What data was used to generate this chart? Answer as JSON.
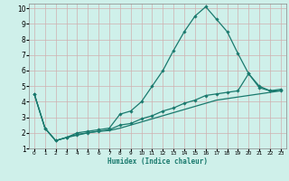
{
  "bg_color": "#cff0ea",
  "grid_color": "#d0b0b0",
  "line_color": "#1a7a6e",
  "xlabel": "Humidex (Indice chaleur)",
  "xlim": [
    -0.5,
    23.5
  ],
  "ylim": [
    1,
    10.3
  ],
  "yticks": [
    1,
    2,
    3,
    4,
    5,
    6,
    7,
    8,
    9,
    10
  ],
  "xticks": [
    0,
    1,
    2,
    3,
    4,
    5,
    6,
    7,
    8,
    9,
    10,
    11,
    12,
    13,
    14,
    15,
    16,
    17,
    18,
    19,
    20,
    21,
    22,
    23
  ],
  "series": [
    {
      "x": [
        0,
        1,
        2,
        3,
        4,
        5,
        6,
        7,
        8,
        9,
        10,
        11,
        12,
        13,
        14,
        15,
        16,
        17,
        18,
        19,
        20,
        21,
        22,
        23
      ],
      "y": [
        4.5,
        2.3,
        1.5,
        1.7,
        2.0,
        2.1,
        2.2,
        2.3,
        3.2,
        3.4,
        4.0,
        5.0,
        6.0,
        7.3,
        8.5,
        9.5,
        10.1,
        9.3,
        8.5,
        7.1,
        5.8,
        5.0,
        4.7,
        4.7
      ],
      "marker": "D",
      "markersize": 1.8,
      "lw": 0.9
    },
    {
      "x": [
        0,
        1,
        2,
        3,
        4,
        5,
        6,
        7,
        8,
        9,
        10,
        11,
        12,
        13,
        14,
        15,
        16,
        17,
        18,
        19,
        20,
        21,
        22,
        23
      ],
      "y": [
        4.5,
        2.3,
        1.5,
        1.7,
        1.9,
        2.0,
        2.1,
        2.2,
        2.5,
        2.6,
        2.9,
        3.1,
        3.4,
        3.6,
        3.9,
        4.1,
        4.4,
        4.5,
        4.6,
        4.7,
        5.8,
        4.9,
        4.7,
        4.8
      ],
      "marker": "D",
      "markersize": 1.8,
      "lw": 0.9
    },
    {
      "x": [
        0,
        1,
        2,
        3,
        4,
        5,
        6,
        7,
        8,
        9,
        10,
        11,
        12,
        13,
        14,
        15,
        16,
        17,
        18,
        19,
        20,
        21,
        22,
        23
      ],
      "y": [
        4.5,
        2.3,
        1.5,
        1.7,
        1.85,
        2.0,
        2.1,
        2.15,
        2.3,
        2.5,
        2.7,
        2.9,
        3.1,
        3.3,
        3.5,
        3.7,
        3.9,
        4.1,
        4.2,
        4.3,
        4.4,
        4.5,
        4.6,
        4.7
      ],
      "marker": null,
      "markersize": 0,
      "lw": 0.9
    }
  ]
}
